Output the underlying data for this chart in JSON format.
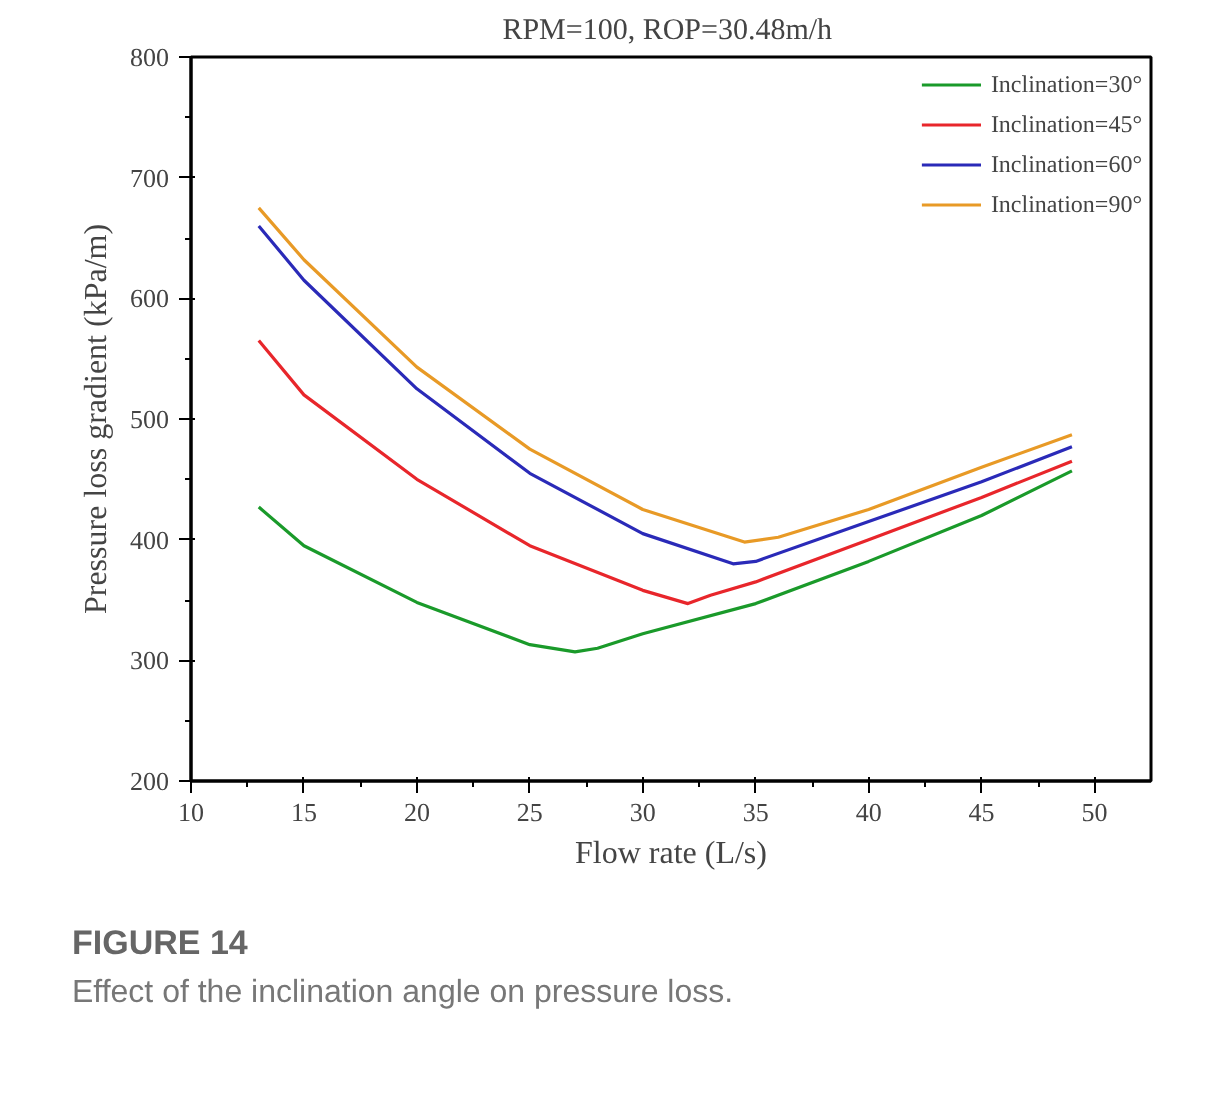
{
  "chart_data": {
    "type": "line",
    "title": "RPM=100,  ROP=30.48m/h",
    "xlabel": "Flow rate (L/s)",
    "ylabel": "Pressure loss gradient (kPa/m)",
    "xlim": [
      10,
      52.5
    ],
    "xticks": [
      10,
      15,
      20,
      25,
      30,
      35,
      40,
      45,
      50
    ],
    "ylim": [
      200,
      800
    ],
    "yticks": [
      200,
      300,
      400,
      500,
      600,
      700,
      800
    ],
    "grid": false,
    "legend": "top right",
    "marker": "none",
    "line_style": "solid",
    "annotations": [
      "FIGURE 14",
      "Effect of the inclination angle on pressure loss."
    ],
    "series": [
      {
        "name": "Inclination=30°",
        "color": "#1a9a2a",
        "x": [
          13,
          15,
          20,
          25,
          27,
          28,
          30,
          35,
          40,
          45,
          49
        ],
        "values": [
          427,
          395,
          348,
          313,
          307,
          310,
          322,
          347,
          382,
          420,
          457
        ]
      },
      {
        "name": "Inclination=45°",
        "color": "#e8262b",
        "x": [
          13,
          15,
          20,
          25,
          30,
          32,
          33,
          35,
          40,
          45,
          49
        ],
        "values": [
          565,
          520,
          450,
          395,
          358,
          347,
          354,
          365,
          400,
          435,
          465
        ]
      },
      {
        "name": "Inclination=60°",
        "color": "#2a2ab8",
        "x": [
          13,
          15,
          20,
          25,
          30,
          34,
          35,
          40,
          45,
          49
        ],
        "values": [
          660,
          615,
          525,
          455,
          405,
          380,
          382,
          415,
          448,
          477
        ]
      },
      {
        "name": "Inclination=90°",
        "color": "#e89a26",
        "x": [
          13,
          15,
          20,
          25,
          30,
          34.5,
          36,
          40,
          45,
          49
        ],
        "values": [
          675,
          632,
          543,
          475,
          425,
          398,
          402,
          425,
          460,
          487
        ]
      }
    ]
  }
}
